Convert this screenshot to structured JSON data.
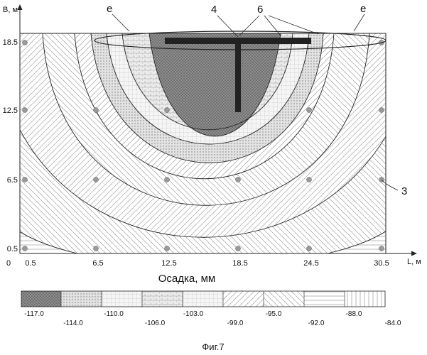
{
  "figure": {
    "caption": "Фиг.7",
    "y_axis_label": "B, м",
    "x_axis_label": "L, м",
    "origin_label": "0",
    "x_title": "Осадка, мм",
    "x_ticks": [
      "0.5",
      "6.5",
      "12.5",
      "18.5",
      "24.5",
      "30.5"
    ],
    "y_ticks": [
      "18.5",
      "12.5",
      "6.5",
      "0.5"
    ],
    "callouts": {
      "e_left": "e",
      "e_right": "e",
      "beam": "4",
      "piles": "6",
      "points": "3"
    },
    "legend": {
      "levels": [
        "-117.0",
        "-114.0",
        "-110.0",
        "-106.0",
        "-103.0",
        "-99.0",
        "-95.0",
        "-92.0",
        "-88.0",
        "-84.0"
      ]
    }
  }
}
